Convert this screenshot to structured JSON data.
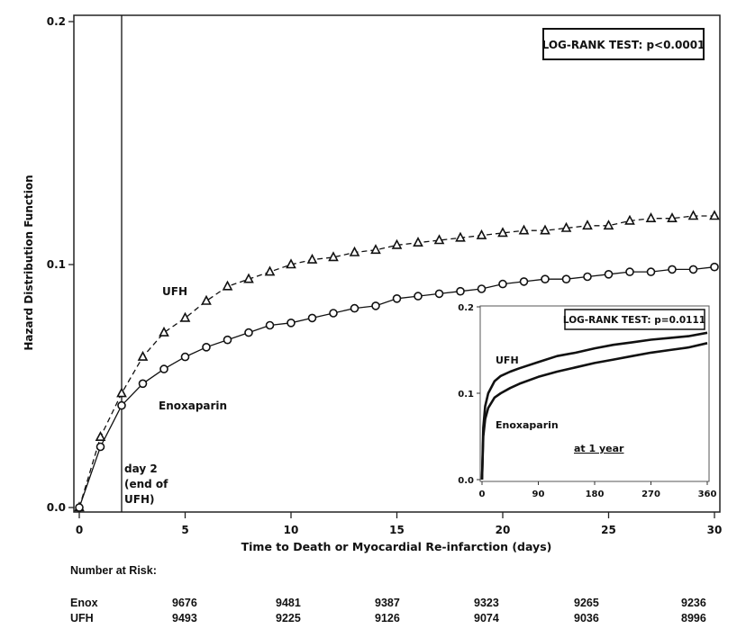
{
  "chart_data": [
    {
      "type": "line",
      "title": "",
      "xlabel": "Time to Death or Myocardial Re-infarction (days)",
      "ylabel": "Hazard Distribution Function",
      "xlim": [
        0,
        30
      ],
      "ylim": [
        0,
        0.2
      ],
      "xticks": [
        "0",
        "5",
        "10",
        "15",
        "20",
        "25",
        "30"
      ],
      "yticks": [
        "0.0",
        "0.1",
        "0.2"
      ],
      "grid": false,
      "x": [
        0,
        1,
        2,
        3,
        4,
        5,
        6,
        7,
        8,
        9,
        10,
        11,
        12,
        13,
        14,
        15,
        16,
        17,
        18,
        19,
        20,
        21,
        22,
        23,
        24,
        25,
        26,
        27,
        28,
        29,
        30
      ],
      "series": [
        {
          "name": "UFH",
          "style": "dashed",
          "marker": "triangle",
          "values": [
            0.0,
            0.029,
            0.047,
            0.062,
            0.072,
            0.078,
            0.085,
            0.091,
            0.094,
            0.097,
            0.1,
            0.102,
            0.103,
            0.105,
            0.106,
            0.108,
            0.109,
            0.11,
            0.111,
            0.112,
            0.113,
            0.114,
            0.114,
            0.115,
            0.116,
            0.116,
            0.118,
            0.119,
            0.119,
            0.12,
            0.12
          ]
        },
        {
          "name": "Enoxaparin",
          "style": "solid",
          "marker": "circle",
          "values": [
            0.0,
            0.025,
            0.042,
            0.051,
            0.057,
            0.062,
            0.066,
            0.069,
            0.072,
            0.075,
            0.076,
            0.078,
            0.08,
            0.082,
            0.083,
            0.086,
            0.087,
            0.088,
            0.089,
            0.09,
            0.092,
            0.093,
            0.094,
            0.094,
            0.095,
            0.096,
            0.097,
            0.097,
            0.098,
            0.098,
            0.099
          ]
        }
      ],
      "annotations": {
        "log_rank": "LOG-RANK TEST: p<0.0001",
        "ufh_label": "UFH",
        "enox_label": "Enoxaparin",
        "day2_line1": "day 2",
        "day2_line2": "(end of",
        "day2_line3": "UFH)",
        "vertical_line_day": 2
      }
    },
    {
      "type": "line",
      "title": "at 1 year",
      "xlim": [
        0,
        360
      ],
      "ylim": [
        0,
        0.2
      ],
      "xticks": [
        "0",
        "90",
        "180",
        "270",
        "360"
      ],
      "yticks": [
        "0.0",
        "0.1",
        "0.2"
      ],
      "grid": false,
      "x": [
        0,
        2,
        5,
        10,
        20,
        30,
        45,
        60,
        90,
        120,
        150,
        180,
        210,
        240,
        270,
        300,
        330,
        360
      ],
      "series": [
        {
          "name": "UFH",
          "values": [
            0.0,
            0.06,
            0.085,
            0.1,
            0.114,
            0.12,
            0.125,
            0.129,
            0.136,
            0.143,
            0.147,
            0.152,
            0.156,
            0.159,
            0.162,
            0.164,
            0.166,
            0.17
          ]
        },
        {
          "name": "Enoxaparin",
          "values": [
            0.0,
            0.05,
            0.07,
            0.083,
            0.095,
            0.1,
            0.106,
            0.111,
            0.119,
            0.125,
            0.13,
            0.135,
            0.139,
            0.143,
            0.147,
            0.15,
            0.153,
            0.158
          ]
        }
      ],
      "annotations": {
        "log_rank": "LOG-RANK TEST: p=0.0111",
        "ufh_label": "UFH",
        "enox_label": "Enoxaparin",
        "subtitle": "at 1 year"
      }
    }
  ],
  "risk_table": {
    "heading": "Number at Risk:",
    "rows": [
      {
        "label": "Enox",
        "values": [
          "9676",
          "9481",
          "9387",
          "9323",
          "9265",
          "9236"
        ]
      },
      {
        "label": "UFH",
        "values": [
          "9493",
          "9225",
          "9126",
          "9074",
          "9036",
          "8996"
        ]
      }
    ]
  }
}
